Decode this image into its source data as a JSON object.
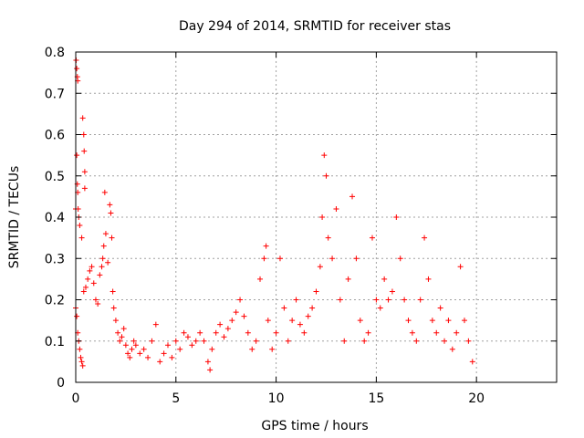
{
  "chart_data": {
    "type": "scatter",
    "title": "Day 294 of 2014, SRMTID for receiver stas",
    "xlabel": "GPS time / hours",
    "ylabel": "SRMTID / TECUs",
    "xlim": [
      0,
      24
    ],
    "ylim": [
      0,
      0.8
    ],
    "xticks": [
      0,
      5,
      10,
      15,
      20
    ],
    "yticks": [
      0,
      0.1,
      0.2,
      0.3,
      0.4,
      0.5,
      0.6,
      0.7,
      0.8
    ],
    "xtick_labels": [
      "0",
      "5",
      "10",
      "15",
      "20"
    ],
    "ytick_labels": [
      "0",
      "0.1",
      "0.2",
      "0.3",
      "0.4",
      "0.5",
      "0.6",
      "0.7",
      "0.8"
    ],
    "grid": true,
    "marker": "+",
    "marker_color": "#ff0000",
    "series": [
      {
        "name": "SRMTID",
        "points": [
          [
            0.02,
            0.78
          ],
          [
            0.05,
            0.76
          ],
          [
            0.08,
            0.74
          ],
          [
            0.1,
            0.73
          ],
          [
            0.35,
            0.64
          ],
          [
            0.4,
            0.6
          ],
          [
            0.42,
            0.56
          ],
          [
            0.45,
            0.51
          ],
          [
            0.05,
            0.55
          ],
          [
            0.08,
            0.48
          ],
          [
            0.1,
            0.46
          ],
          [
            0.12,
            0.42
          ],
          [
            0.15,
            0.4
          ],
          [
            0.2,
            0.38
          ],
          [
            0.3,
            0.35
          ],
          [
            0.45,
            0.47
          ],
          [
            0.0,
            0.42
          ],
          [
            0.0,
            0.18
          ],
          [
            0.05,
            0.16
          ],
          [
            0.1,
            0.12
          ],
          [
            0.15,
            0.1
          ],
          [
            0.2,
            0.08
          ],
          [
            0.25,
            0.06
          ],
          [
            0.3,
            0.05
          ],
          [
            0.35,
            0.04
          ],
          [
            0.4,
            0.22
          ],
          [
            0.5,
            0.23
          ],
          [
            0.6,
            0.25
          ],
          [
            0.7,
            0.27
          ],
          [
            0.8,
            0.28
          ],
          [
            0.9,
            0.24
          ],
          [
            1.0,
            0.2
          ],
          [
            1.1,
            0.19
          ],
          [
            1.2,
            0.26
          ],
          [
            1.3,
            0.28
          ],
          [
            1.35,
            0.3
          ],
          [
            1.4,
            0.33
          ],
          [
            1.45,
            0.46
          ],
          [
            1.5,
            0.36
          ],
          [
            1.6,
            0.29
          ],
          [
            1.7,
            0.43
          ],
          [
            1.75,
            0.41
          ],
          [
            1.8,
            0.35
          ],
          [
            1.85,
            0.22
          ],
          [
            1.9,
            0.18
          ],
          [
            2.0,
            0.15
          ],
          [
            2.1,
            0.12
          ],
          [
            2.2,
            0.1
          ],
          [
            2.3,
            0.11
          ],
          [
            2.4,
            0.13
          ],
          [
            2.5,
            0.09
          ],
          [
            2.6,
            0.07
          ],
          [
            2.7,
            0.06
          ],
          [
            2.8,
            0.08
          ],
          [
            2.9,
            0.1
          ],
          [
            3.0,
            0.09
          ],
          [
            3.2,
            0.07
          ],
          [
            3.4,
            0.08
          ],
          [
            3.6,
            0.06
          ],
          [
            3.8,
            0.1
          ],
          [
            4.0,
            0.14
          ],
          [
            4.2,
            0.05
          ],
          [
            4.4,
            0.07
          ],
          [
            4.6,
            0.09
          ],
          [
            4.8,
            0.06
          ],
          [
            5.0,
            0.1
          ],
          [
            5.2,
            0.08
          ],
          [
            5.4,
            0.12
          ],
          [
            5.6,
            0.11
          ],
          [
            5.8,
            0.09
          ],
          [
            6.0,
            0.1
          ],
          [
            6.2,
            0.12
          ],
          [
            6.4,
            0.1
          ],
          [
            6.6,
            0.05
          ],
          [
            6.7,
            0.03
          ],
          [
            6.8,
            0.08
          ],
          [
            7.0,
            0.12
          ],
          [
            7.2,
            0.14
          ],
          [
            7.4,
            0.11
          ],
          [
            7.6,
            0.13
          ],
          [
            7.8,
            0.15
          ],
          [
            8.0,
            0.17
          ],
          [
            8.2,
            0.2
          ],
          [
            8.4,
            0.16
          ],
          [
            8.6,
            0.12
          ],
          [
            8.8,
            0.08
          ],
          [
            9.0,
            0.1
          ],
          [
            9.2,
            0.25
          ],
          [
            9.4,
            0.3
          ],
          [
            9.5,
            0.33
          ],
          [
            9.6,
            0.15
          ],
          [
            9.8,
            0.08
          ],
          [
            10.0,
            0.12
          ],
          [
            10.2,
            0.3
          ],
          [
            10.4,
            0.18
          ],
          [
            10.6,
            0.1
          ],
          [
            10.8,
            0.15
          ],
          [
            11.0,
            0.2
          ],
          [
            11.2,
            0.14
          ],
          [
            11.4,
            0.12
          ],
          [
            11.6,
            0.16
          ],
          [
            11.8,
            0.18
          ],
          [
            12.0,
            0.22
          ],
          [
            12.2,
            0.28
          ],
          [
            12.3,
            0.4
          ],
          [
            12.4,
            0.55
          ],
          [
            12.5,
            0.5
          ],
          [
            12.6,
            0.35
          ],
          [
            12.8,
            0.3
          ],
          [
            13.0,
            0.42
          ],
          [
            13.2,
            0.2
          ],
          [
            13.4,
            0.1
          ],
          [
            13.6,
            0.25
          ],
          [
            13.8,
            0.45
          ],
          [
            14.0,
            0.3
          ],
          [
            14.2,
            0.15
          ],
          [
            14.4,
            0.1
          ],
          [
            14.6,
            0.12
          ],
          [
            14.8,
            0.35
          ],
          [
            15.0,
            0.2
          ],
          [
            15.2,
            0.18
          ],
          [
            15.4,
            0.25
          ],
          [
            15.6,
            0.2
          ],
          [
            15.8,
            0.22
          ],
          [
            16.0,
            0.4
          ],
          [
            16.2,
            0.3
          ],
          [
            16.4,
            0.2
          ],
          [
            16.6,
            0.15
          ],
          [
            16.8,
            0.12
          ],
          [
            17.0,
            0.1
          ],
          [
            17.2,
            0.2
          ],
          [
            17.4,
            0.35
          ],
          [
            17.6,
            0.25
          ],
          [
            17.8,
            0.15
          ],
          [
            18.0,
            0.12
          ],
          [
            18.2,
            0.18
          ],
          [
            18.4,
            0.1
          ],
          [
            18.6,
            0.15
          ],
          [
            18.8,
            0.08
          ],
          [
            19.0,
            0.12
          ],
          [
            19.2,
            0.28
          ],
          [
            19.4,
            0.15
          ],
          [
            19.6,
            0.1
          ],
          [
            19.8,
            0.05
          ]
        ]
      }
    ]
  }
}
